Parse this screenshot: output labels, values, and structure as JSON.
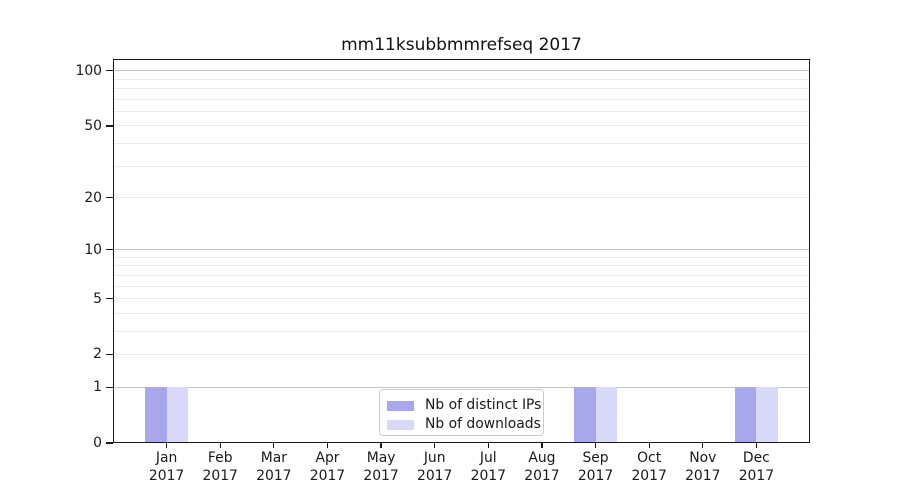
{
  "chart_data": {
    "type": "bar",
    "title": "mm11ksubbmmrefseq 2017",
    "months": [
      "Jan",
      "Feb",
      "Mar",
      "Apr",
      "May",
      "Jun",
      "Jul",
      "Aug",
      "Sep",
      "Oct",
      "Nov",
      "Dec"
    ],
    "year": "2017",
    "categories": [
      "Jan 2017",
      "Feb 2017",
      "Mar 2017",
      "Apr 2017",
      "May 2017",
      "Jun 2017",
      "Jul 2017",
      "Aug 2017",
      "Sep 2017",
      "Oct 2017",
      "Nov 2017",
      "Dec 2017"
    ],
    "series": [
      {
        "name": "Nb of distinct IPs",
        "color": "#a7a7ee",
        "values": [
          1,
          0,
          0,
          0,
          0,
          0,
          0,
          0,
          1,
          0,
          0,
          1
        ]
      },
      {
        "name": "Nb of downloads",
        "color": "#d8d8f8",
        "values": [
          1,
          0,
          0,
          0,
          0,
          0,
          0,
          0,
          1,
          0,
          0,
          1
        ]
      }
    ],
    "y_axis": {
      "scale": "log1p",
      "tick_labels": [
        "0",
        "1",
        "2",
        "5",
        "10",
        "20",
        "50",
        "100"
      ],
      "tick_values": [
        0,
        1,
        2,
        5,
        10,
        20,
        50,
        100
      ],
      "major_gridlines": [
        1,
        10,
        100
      ],
      "minor_gridlines": [
        2,
        3,
        4,
        5,
        6,
        7,
        8,
        9,
        20,
        30,
        40,
        50,
        60,
        70,
        80,
        90
      ],
      "ylim": [
        0,
        116
      ]
    },
    "grid": true,
    "legend_position": "lower center",
    "colors": {
      "major_grid": "#c3c3c3",
      "minor_grid": "#ebebeb",
      "spine": "#1a1a1a"
    }
  }
}
